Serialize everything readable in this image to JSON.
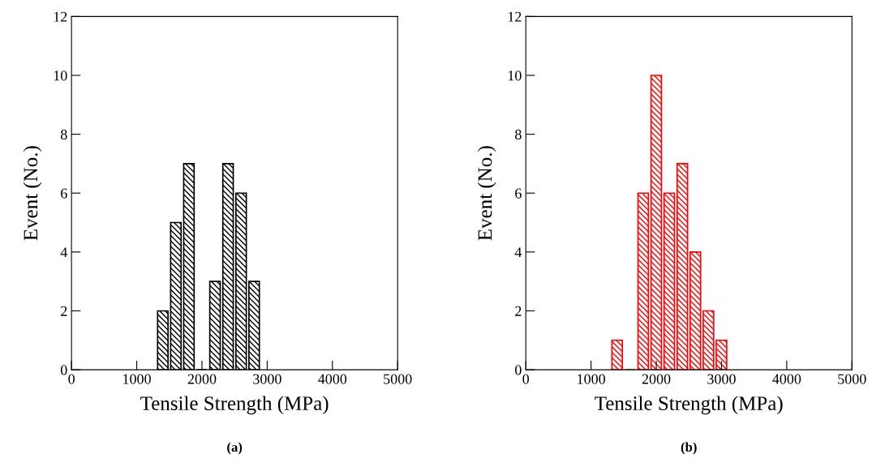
{
  "chart_data": [
    {
      "type": "histogram",
      "bins": [
        1300,
        1500,
        1700,
        1900,
        2100,
        2300,
        2500,
        2700,
        2900
      ],
      "values": [
        2,
        5,
        7,
        0,
        3,
        7,
        6,
        3
      ],
      "color": "#000000",
      "xlabel": "Tensile Strength (MPa)",
      "ylabel": "Event (No.)",
      "xlim": [
        0,
        5000
      ],
      "xticks": [
        0,
        1000,
        2000,
        3000,
        4000,
        5000
      ],
      "ylim": [
        0,
        12
      ],
      "yticks": [
        0,
        2,
        4,
        6,
        8,
        10,
        12
      ],
      "grid": false,
      "annotations": [
        "(a)"
      ]
    },
    {
      "type": "histogram",
      "bins": [
        1300,
        1500,
        1700,
        1900,
        2100,
        2300,
        2500,
        2700,
        2900,
        3100
      ],
      "values": [
        1,
        0,
        6,
        10,
        6,
        7,
        4,
        2,
        1
      ],
      "color": "#ff0000",
      "xlabel": "Tensile Strength (MPa)",
      "ylabel": "Event (No.)",
      "xlim": [
        0,
        5000
      ],
      "xticks": [
        0,
        1000,
        2000,
        3000,
        4000,
        5000
      ],
      "ylim": [
        0,
        12
      ],
      "yticks": [
        0,
        2,
        4,
        6,
        8,
        10,
        12
      ],
      "grid": false,
      "annotations": [
        "(b)"
      ]
    }
  ]
}
